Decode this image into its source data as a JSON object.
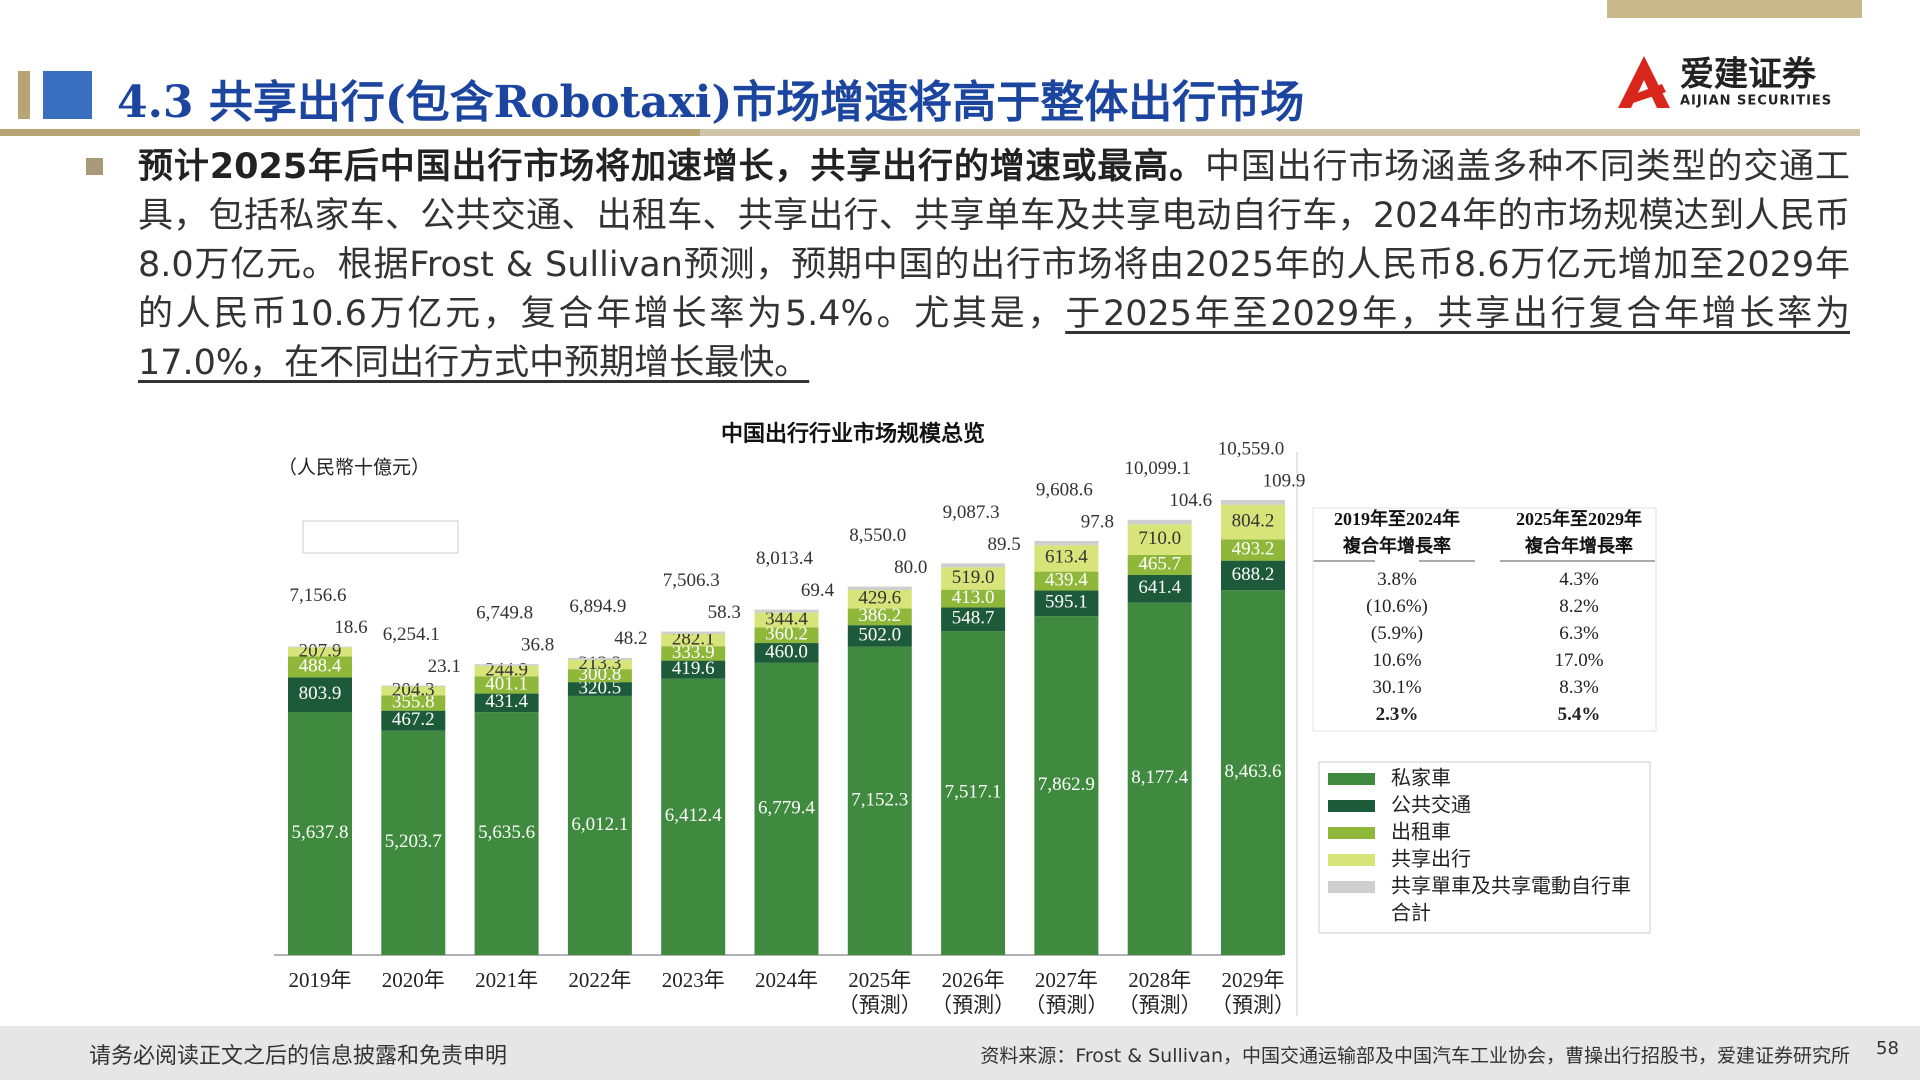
{
  "header": {
    "title": "4.3 共享出行(包含Robotaxi)市场增速将高于整体出行市场",
    "logo_cn": "爱建证券",
    "logo_en": "AIJIAN SECURITIES"
  },
  "body": {
    "bold": "预计2025年后中国出行市场将加速增长，共享出行的增速或最高。",
    "text": "中国出行市场涵盖多种不同类型的交通工具，包括私家车、公共交通、出租车、共享出行、共享单车及共享电动自行车，2024年的市场规模达到人民币8.0万亿元。根据Frost & Sullivan预测，预期中国的出行市场将由2025年的人民币8.6万亿元增加至2029年的人民币10.6万亿元，复合年增长率为5.4%。尤其是，",
    "underlined": "于2025年至2029年，共享出行复合年增长率为17.0%，在不同出行方式中预期增长最快。"
  },
  "chart_data": {
    "type": "stacked_bar",
    "title": "中国出行行业市场规模总览",
    "unit_label": "（人民幣十億元）",
    "categories": [
      "2019年",
      "2020年",
      "2021年",
      "2022年",
      "2023年",
      "2024年",
      "2025年\n（預測）",
      "2026年\n（預測）",
      "2027年\n（預測）",
      "2028年\n（預測）",
      "2029年\n（預測）"
    ],
    "series": [
      {
        "name": "私家車",
        "color": "#3f8a3f",
        "values": [
          5637.8,
          5203.7,
          5635.6,
          6012.1,
          6412.4,
          6779.4,
          7152.3,
          7517.1,
          7862.9,
          8177.4,
          8463.6
        ],
        "value_labels": [
          "5,637.8",
          "5,203.7",
          "5,635.6",
          "6,012.1",
          "6,412.4",
          "6,779.4",
          "7,152.3",
          "7,517.1",
          "7,862.9",
          "8,177.4",
          "8,463.6"
        ]
      },
      {
        "name": "公共交通",
        "color": "#1d5a3a",
        "values": [
          803.9,
          467.2,
          431.4,
          320.5,
          419.6,
          460.0,
          502.0,
          548.7,
          595.1,
          641.4,
          688.2
        ],
        "value_labels": [
          "803.9",
          "467.2",
          "431.4",
          "320.5",
          "419.6",
          "460.0",
          "502.0",
          "548.7",
          "595.1",
          "641.4",
          "688.2"
        ]
      },
      {
        "name": "出租車",
        "color": "#8fb83b",
        "values": [
          488.4,
          355.8,
          401.1,
          300.8,
          333.9,
          360.2,
          386.2,
          413.0,
          439.4,
          465.7,
          493.2
        ],
        "value_labels": [
          "488.4",
          "355.8",
          "401.1",
          "300.8",
          "333.9",
          "360.2",
          "386.2",
          "413.0",
          "439.4",
          "465.7",
          "493.2"
        ]
      },
      {
        "name": "共享出行",
        "color": "#d7e47a",
        "values": [
          207.9,
          204.3,
          244.9,
          213.3,
          282.1,
          344.4,
          429.6,
          519.0,
          613.4,
          710.0,
          804.2
        ],
        "value_labels": [
          "207.9",
          "204.3",
          "244.9",
          "213.3",
          "282.1",
          "344.4",
          "429.6",
          "519.0",
          "613.4",
          "710.0",
          "804.2"
        ]
      },
      {
        "name": "共享單車及共享電動自行車",
        "color": "#cfcfcf",
        "values": [
          18.6,
          23.1,
          36.8,
          48.2,
          58.3,
          69.4,
          80.0,
          89.5,
          97.8,
          104.6,
          109.9
        ],
        "value_labels": [
          "18.6",
          "23.1",
          "36.8",
          "48.2",
          "58.3",
          "69.4",
          "80.0",
          "89.5",
          "97.8",
          "104.6",
          "109.9"
        ]
      }
    ],
    "total_name": "合計",
    "totals": [
      7156.6,
      6254.1,
      6749.8,
      6894.9,
      7506.3,
      8013.4,
      8550.0,
      9087.3,
      9608.6,
      10099.1,
      10559.0
    ],
    "total_value_labels": [
      "7,156.6",
      "6,254.1",
      "6,749.8",
      "6,894.9",
      "7,506.3",
      "8,013.4",
      "8,550.0",
      "9,087.3",
      "9,608.6",
      "10,099.1",
      "10,559.0"
    ],
    "cagr_table": {
      "headers": [
        "2019年至2024年\n複合年增長率",
        "2025年至2029年\n複合年增長率"
      ],
      "rows": [
        [
          "3.8%",
          "4.3%"
        ],
        [
          "(10.6%)",
          "8.2%"
        ],
        [
          "(5.9%)",
          "6.3%"
        ],
        [
          "10.6%",
          "17.0%"
        ],
        [
          "30.1%",
          "8.3%"
        ],
        [
          "2.3%",
          "5.4%"
        ]
      ]
    }
  },
  "footer": {
    "disclaimer": "请务必阅读正文之后的信息披露和免责申明",
    "source": "资料来源：Frost & Sullivan，中国交通运输部及中国汽车工业协会，曹操出行招股书，爱建证券研究所",
    "page": "58"
  }
}
